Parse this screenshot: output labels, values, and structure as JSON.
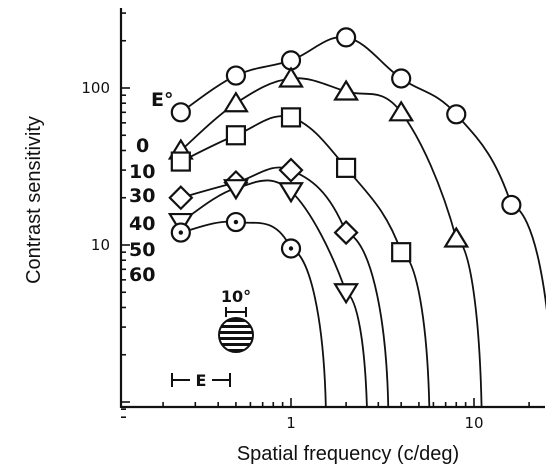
{
  "chart_data": {
    "type": "line",
    "title": "",
    "xlabel": "Spatial frequency (c/deg)",
    "ylabel": "Contrast sensitivity",
    "xscale": "log",
    "yscale": "log",
    "xlim": [
      0.17,
      25
    ],
    "ylim": [
      0.75,
      450
    ],
    "x_tick_labels": [
      {
        "value": 1,
        "label": "1"
      },
      {
        "value": 10,
        "label": "10"
      }
    ],
    "y_tick_labels": [
      {
        "value": 10,
        "label": "10"
      },
      {
        "value": 100,
        "label": "100"
      }
    ],
    "legend_title": "E°",
    "annotations": {
      "stimulus_size": "10°",
      "eccentricity_bar": "E"
    },
    "series": [
      {
        "name": "0",
        "marker": "circle",
        "x": [
          0.25,
          0.5,
          1,
          2,
          4,
          8,
          16
        ],
        "y": [
          70,
          120,
          150,
          210,
          115,
          68,
          18
        ],
        "cutoff": 27
      },
      {
        "name": "10",
        "marker": "triangle-up",
        "x": [
          0.25,
          0.5,
          1,
          2,
          4,
          8
        ],
        "y": [
          40,
          80,
          115,
          95,
          70,
          11
        ],
        "cutoff": 11
      },
      {
        "name": "30",
        "marker": "square",
        "x": [
          0.25,
          0.5,
          1,
          2,
          4
        ],
        "y": [
          34,
          50,
          65,
          31,
          9
        ],
        "cutoff": 5.7
      },
      {
        "name": "40",
        "marker": "diamond",
        "x": [
          0.25,
          0.5,
          1,
          2
        ],
        "y": [
          20,
          25,
          30,
          12
        ],
        "cutoff": 3.4
      },
      {
        "name": "50",
        "marker": "triangle-down",
        "x": [
          0.25,
          0.5,
          1,
          2
        ],
        "y": [
          14,
          23,
          22,
          5
        ],
        "cutoff": 2.6
      },
      {
        "name": "60",
        "marker": "circle-dot",
        "x": [
          0.25,
          0.5,
          1
        ],
        "y": [
          12,
          14,
          9.5
        ],
        "cutoff": 1.55
      }
    ]
  }
}
